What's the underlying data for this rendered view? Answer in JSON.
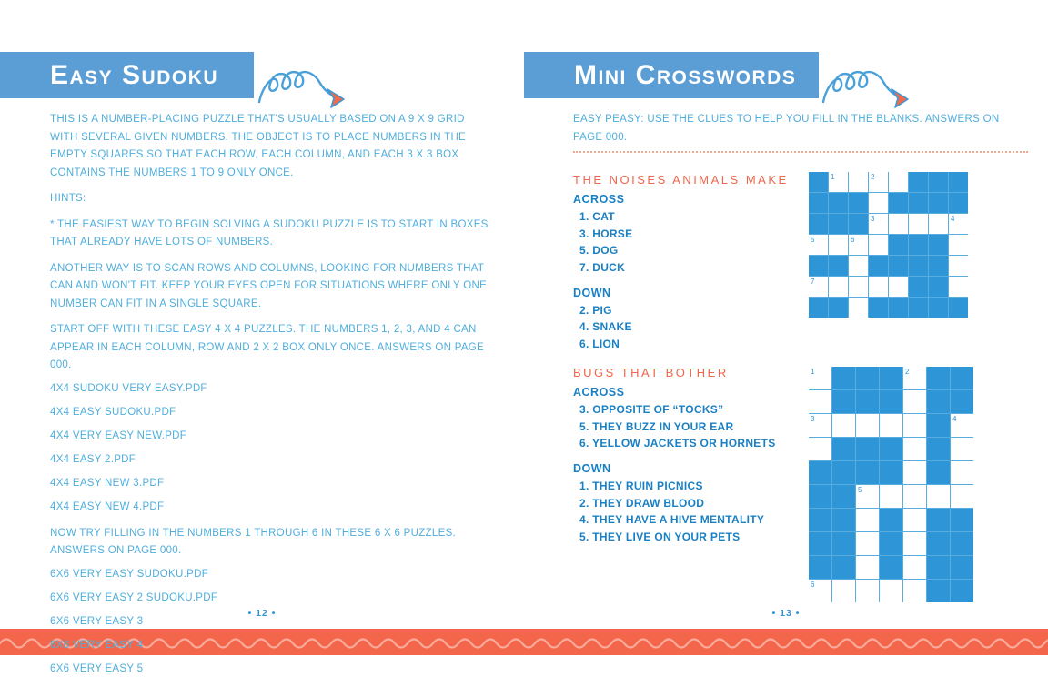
{
  "left_page": {
    "title": "Easy Sudoku",
    "page_number": "• 12 •",
    "paragraphs": [
      "THIS IS A NUMBER-PLACING PUZZLE THAT'S USUALLY BASED ON A 9 X 9 GRID WITH SEVERAL GIVEN NUMBERS. THE OBJECT IS TO PLACE NUMBERS IN THE EMPTY SQUARES SO THAT EACH ROW, EACH COLUMN, AND EACH 3 X 3 BOX CONTAINS THE NUMBERS 1 TO 9 ONLY ONCE.",
      "HINTS:",
      "* THE EASIEST WAY TO BEGIN SOLVING A SUDOKU PUZZLE IS TO START IN BOXES THAT ALREADY HAVE LOTS OF NUMBERS.",
      "ANOTHER WAY IS TO SCAN ROWS AND COLUMNS, LOOKING FOR NUMBERS THAT CAN AND WON'T FIT. KEEP YOUR EYES OPEN FOR SITUATIONS WHERE ONLY ONE NUMBER CAN FIT IN A SINGLE SQUARE.",
      "START OFF WITH THESE EASY 4 X 4 PUZZLES. THE NUMBERS 1, 2, 3, AND 4 CAN APPEAR IN EACH COLUMN, ROW AND 2 X 2 BOX ONLY ONCE. ANSWERS ON PAGE 000."
    ],
    "files_4x4": [
      "4X4 SUDOKU VERY EASY.PDF",
      "4X4 EASY SUDOKU.PDF",
      "4X4 VERY EASY NEW.PDF",
      "4X4 EASY 2.PDF",
      "4X4 EASY NEW 3.PDF",
      "4X4 EASY NEW 4.PDF"
    ],
    "more_text": "NOW TRY FILLING IN THE NUMBERS 1 THROUGH 6 IN THESE 6 X 6 PUZZLES. ANSWERS ON PAGE 000.",
    "files_6x6": [
      "6X6 VERY EASY SUDOKU.PDF",
      "6X6 VERY EASY 2 SUDOKU.PDF",
      "6X6 VERY EASY 3",
      "6X6 VERY EASY 4",
      "6X6 VERY EASY 5"
    ]
  },
  "right_page": {
    "title": "Mini Crosswords",
    "page_number": "• 13 •",
    "intro": "EASY PEASY: USE THE CLUES TO HELP YOU FILL IN THE BLANKS. ANSWERS ON PAGE 000.",
    "puzzles": [
      {
        "title": "THE NOISES ANIMALS MAKE",
        "across_label": "ACROSS",
        "down_label": "DOWN",
        "across": [
          "1. CAT",
          "3. HORSE",
          "5. DOG",
          "7. DUCK"
        ],
        "down": [
          "2. PIG",
          "4. SNAKE",
          "6. LION"
        ],
        "grid": {
          "cols": 8,
          "rows": [
            ".1o2o...",
            "...o....",
            "...3ooo4",
            "5o6o...o",
            "..o....o",
            "7oooo..o",
            "..o....."
          ]
        }
      },
      {
        "title": "BUGS THAT BOTHER",
        "across_label": "ACROSS",
        "down_label": "DOWN",
        "across": [
          "3. OPPOSITE OF “TOCKS”",
          "5. THEY BUZZ IN YOUR EAR",
          "6. YELLOW JACKETS OR HORNETS"
        ],
        "down": [
          "1. THEY RUIN PICNICS",
          "2. THEY DRAW BLOOD",
          "4. THEY HAVE A HIVE MENTALITY",
          "5. THEY LIVE ON YOUR PETS"
        ],
        "grid": {
          "cols": 7,
          "rows": [
            "1...2..",
            "o...o..",
            "3oooo.4",
            "o...o.o",
            "....o.o",
            "..5oooo",
            "..o.o..",
            "..o.o..",
            "..o.o..",
            "6oooo.."
          ]
        }
      }
    ]
  },
  "grid_legend": {
    ".": "blocked blue cell",
    "o": "empty white cell",
    "1-7": "white cell with clue number"
  },
  "decorations": {
    "banner_squiggle": "loop-arrow-icon",
    "footer": "wave-band"
  },
  "colors": {
    "banner_blue": "#5B9ED6",
    "grid_blue": "#2E96D6",
    "body_text_blue": "#4FAEDC",
    "clue_text_blue": "#1A80C4",
    "heading_orange": "#EE674E",
    "footer_band_orange": "#F4664B",
    "dotted_rule_salmon": "#F4A98F"
  }
}
